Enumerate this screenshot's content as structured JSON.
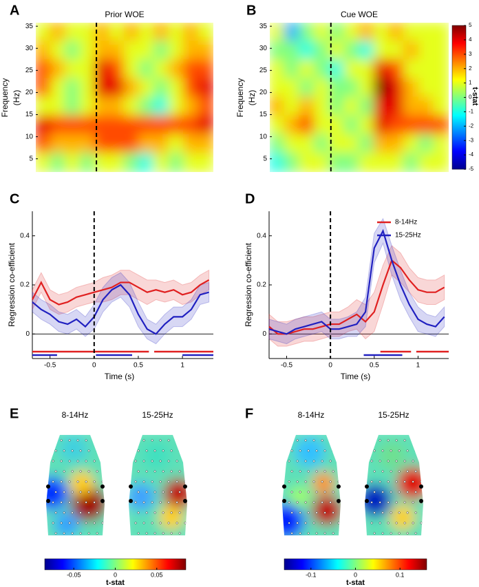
{
  "chart_data": [
    {
      "type": "heatmap",
      "label": "A",
      "title": "Prior WOE",
      "ylabel": [
        "Frequency",
        "(Hz)"
      ],
      "xlim": [
        -0.7,
        1.35
      ],
      "ylim": [
        2,
        35.8
      ],
      "yticks": [
        5,
        10,
        15,
        20,
        25,
        30,
        35
      ],
      "marker_x": 0,
      "zlim": [
        -5,
        5
      ],
      "z": [
        [
          1,
          2,
          1,
          1,
          2,
          1,
          2,
          1,
          2,
          1,
          2,
          1
        ],
        [
          2,
          1,
          0,
          1,
          2,
          2,
          1,
          1,
          0,
          1,
          2,
          2
        ],
        [
          3,
          2,
          1,
          1,
          4,
          3,
          1,
          0,
          1,
          2,
          3,
          3
        ],
        [
          3,
          1,
          0,
          1,
          4,
          4,
          2,
          1,
          0,
          1,
          3,
          4
        ],
        [
          1,
          1,
          0,
          1,
          2,
          2,
          1,
          0,
          -1,
          1,
          2,
          3
        ],
        [
          4,
          3,
          3,
          3,
          3,
          3,
          3,
          3,
          3,
          3,
          3,
          4
        ],
        [
          3,
          2,
          2,
          2,
          3,
          3,
          3,
          2,
          2,
          1,
          2,
          2
        ],
        [
          1,
          0,
          1,
          0,
          1,
          1,
          0,
          -1,
          1,
          0,
          1,
          1
        ]
      ]
    },
    {
      "type": "heatmap",
      "label": "B",
      "title": "Cue WOE",
      "ylabel": [
        "Frequency",
        "(Hz)"
      ],
      "xlim": [
        -0.7,
        1.35
      ],
      "ylim": [
        2,
        35.8
      ],
      "yticks": [
        5,
        10,
        15,
        20,
        25,
        30,
        35
      ],
      "marker_x": 0,
      "zlim": [
        -5,
        5
      ],
      "z": [
        [
          1,
          -2,
          0,
          1,
          0,
          1,
          2,
          1,
          2,
          1,
          1,
          1
        ],
        [
          0,
          0,
          -1,
          0,
          1,
          0,
          -1,
          1,
          1,
          2,
          1,
          1
        ],
        [
          1,
          0,
          1,
          0,
          -1,
          1,
          1,
          4,
          3,
          1,
          1,
          1
        ],
        [
          1,
          1,
          0,
          1,
          0,
          0,
          1,
          5,
          4,
          2,
          1,
          1
        ],
        [
          2,
          1,
          2,
          1,
          0,
          1,
          0,
          4,
          4,
          2,
          2,
          1
        ],
        [
          1,
          2,
          3,
          1,
          1,
          0,
          1,
          4,
          3,
          3,
          3,
          3
        ],
        [
          0,
          1,
          1,
          0,
          1,
          1,
          0,
          2,
          2,
          1,
          0,
          1
        ],
        [
          -1,
          0,
          1,
          1,
          0,
          0,
          1,
          1,
          1,
          0,
          1,
          1
        ]
      ],
      "colorbar": {
        "label": "t-stat",
        "lim": [
          -5,
          5
        ],
        "ticks": [
          -5,
          -4,
          -3,
          -2,
          -1,
          0,
          1,
          2,
          3,
          4,
          5
        ]
      }
    },
    {
      "type": "line",
      "label": "C",
      "xlabel": "Time (s)",
      "ylabel": "Regression co-efficient",
      "xlim": [
        -0.7,
        1.35
      ],
      "ylim": [
        -0.1,
        0.5
      ],
      "xticks": [
        -0.5,
        0,
        0.5,
        1
      ],
      "yticks": [
        0,
        0.2,
        0.4
      ],
      "marker_x": 0,
      "x": [
        -0.7,
        -0.6,
        -0.5,
        -0.4,
        -0.3,
        -0.2,
        -0.1,
        0,
        0.1,
        0.2,
        0.3,
        0.4,
        0.5,
        0.6,
        0.7,
        0.8,
        0.9,
        1.0,
        1.1,
        1.2,
        1.3
      ],
      "series": [
        {
          "color": "#e02020",
          "values": [
            0.14,
            0.21,
            0.14,
            0.12,
            0.13,
            0.15,
            0.16,
            0.17,
            0.18,
            0.19,
            0.21,
            0.21,
            0.19,
            0.17,
            0.18,
            0.17,
            0.18,
            0.16,
            0.17,
            0.2,
            0.22
          ],
          "error": [
            0.04,
            0.04,
            0.04,
            0.04,
            0.04,
            0.04,
            0.04,
            0.04,
            0.05,
            0.05,
            0.05,
            0.05,
            0.05,
            0.05,
            0.04,
            0.04,
            0.04,
            0.04,
            0.04,
            0.04,
            0.04
          ],
          "significant": [
            [
              -0.7,
              0.62
            ],
            [
              0.68,
              1.35
            ]
          ]
        },
        {
          "color": "#2020c0",
          "values": [
            0.13,
            0.1,
            0.08,
            0.05,
            0.04,
            0.06,
            0.03,
            0.07,
            0.14,
            0.18,
            0.2,
            0.16,
            0.08,
            0.02,
            0.0,
            0.04,
            0.07,
            0.07,
            0.1,
            0.16,
            0.17
          ],
          "error": [
            0.04,
            0.04,
            0.04,
            0.04,
            0.04,
            0.04,
            0.04,
            0.05,
            0.05,
            0.05,
            0.05,
            0.05,
            0.05,
            0.04,
            0.04,
            0.04,
            0.04,
            0.04,
            0.04,
            0.04,
            0.04
          ],
          "significant": [
            [
              -0.7,
              -0.42
            ],
            [
              0.02,
              0.43
            ],
            [
              1.0,
              1.35
            ]
          ]
        }
      ]
    },
    {
      "type": "line",
      "label": "D",
      "xlabel": "Time (s)",
      "ylabel": "Regression co-efficient",
      "xlim": [
        -0.7,
        1.35
      ],
      "ylim": [
        -0.1,
        0.5
      ],
      "xticks": [
        -0.5,
        0,
        0.5,
        1
      ],
      "yticks": [
        0,
        0.2,
        0.4
      ],
      "marker_x": 0,
      "legend": "upper right",
      "x": [
        -0.7,
        -0.6,
        -0.5,
        -0.4,
        -0.3,
        -0.2,
        -0.1,
        0,
        0.1,
        0.2,
        0.3,
        0.4,
        0.5,
        0.6,
        0.7,
        0.8,
        0.9,
        1.0,
        1.1,
        1.2,
        1.3
      ],
      "series": [
        {
          "name": "8-14Hz",
          "color": "#e02020",
          "values": [
            0.03,
            0.0,
            0.0,
            0.01,
            0.02,
            0.02,
            0.03,
            0.04,
            0.04,
            0.06,
            0.08,
            0.05,
            0.09,
            0.2,
            0.3,
            0.27,
            0.22,
            0.18,
            0.17,
            0.17,
            0.19
          ],
          "error": [
            0.05,
            0.05,
            0.05,
            0.05,
            0.05,
            0.05,
            0.05,
            0.05,
            0.05,
            0.05,
            0.06,
            0.07,
            0.08,
            0.08,
            0.06,
            0.06,
            0.05,
            0.05,
            0.05,
            0.05,
            0.05
          ],
          "significant": [
            [
              0.57,
              0.92
            ],
            [
              0.98,
              1.35
            ]
          ]
        },
        {
          "name": "15-25Hz",
          "color": "#2020c0",
          "values": [
            0.02,
            0.01,
            0.0,
            0.02,
            0.03,
            0.04,
            0.05,
            0.02,
            0.02,
            0.03,
            0.04,
            0.09,
            0.35,
            0.42,
            0.3,
            0.2,
            0.12,
            0.06,
            0.04,
            0.03,
            0.07
          ],
          "error": [
            0.04,
            0.04,
            0.04,
            0.04,
            0.04,
            0.04,
            0.04,
            0.04,
            0.04,
            0.04,
            0.05,
            0.06,
            0.06,
            0.05,
            0.06,
            0.06,
            0.05,
            0.05,
            0.04,
            0.04,
            0.04
          ],
          "significant": [
            [
              0.38,
              0.82
            ]
          ]
        }
      ]
    },
    {
      "type": "topoplot",
      "label": "E",
      "titles": [
        "8-14Hz",
        "15-25Hz"
      ],
      "colorbar": {
        "label": "t-stat",
        "lim": [
          -0.085,
          0.085
        ],
        "ticks": [
          -0.05,
          0,
          0.05
        ]
      }
    },
    {
      "type": "topoplot",
      "label": "F",
      "titles": [
        "8-14Hz",
        "15-25Hz"
      ],
      "colorbar": {
        "label": "t-stat",
        "lim": [
          -0.16,
          0.16
        ],
        "ticks": [
          -0.1,
          0,
          0.1
        ]
      }
    }
  ]
}
